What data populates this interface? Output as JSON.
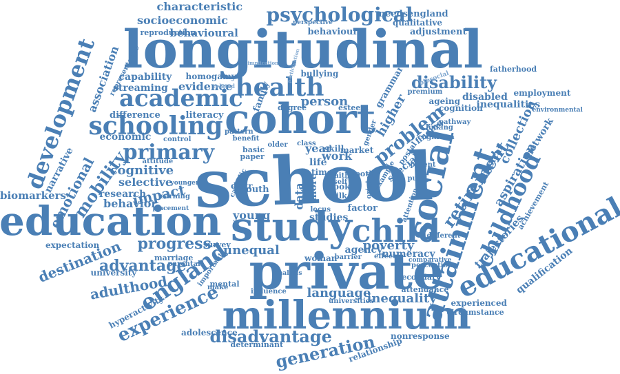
{
  "colors": {
    "primary": "#4a7fb5",
    "light": "#7ea6cf"
  },
  "words": [
    "school",
    "longitudinal",
    "cohort",
    "private",
    "millennium",
    "education",
    "study",
    "social",
    "attainment",
    "educational",
    "development",
    "child",
    "childhood",
    "schooling",
    "academic",
    "health",
    "psychological",
    "primary",
    "england",
    "experience",
    "generation",
    "disadvantage",
    "progress",
    "advantage",
    "adulthood",
    "disability",
    "problem",
    "retirement",
    "inequalities",
    "aspiration",
    "poverty",
    "language",
    "inequality",
    "characteristic",
    "socioeconomic",
    "behavioural",
    "behaviour",
    "needsengland",
    "qualitative",
    "adjustment",
    "fatherhood",
    "employment",
    "cognitive",
    "selective",
    "mobility",
    "emotional",
    "narrative",
    "association",
    "capability",
    "homogamy",
    "evidence",
    "streaming",
    "difference",
    "economic",
    "literacy",
    "impact",
    "behavior",
    "research",
    "biomarkers",
    "expectation",
    "destination",
    "university",
    "unequal",
    "young",
    "studies",
    "agency",
    "numeracy",
    "trajectories",
    "qualification",
    "experienced",
    "circumstance",
    "adolescence",
    "determinant",
    "relationship",
    "nonresponse",
    "collection",
    "network",
    "disabled",
    "cognition",
    "environmental",
    "physical",
    "higher",
    "person",
    "family",
    "year",
    "work",
    "life",
    "data",
    "more",
    "youth",
    "distr",
    "time",
    "basic",
    "paper",
    "attitude",
    "control",
    "bullying",
    "grammar",
    "special",
    "factor",
    "market",
    "skill",
    "class",
    "look",
    "milk",
    "faith",
    "self",
    "tooth",
    "postal",
    "degree",
    "esteem",
    "ageing",
    "premium",
    "linking",
    "pathway",
    "finding",
    "parent",
    "pupil",
    "effect",
    "woman",
    "barrier",
    "marriage",
    "parental",
    "mental",
    "make",
    "influence",
    "analysis",
    "universities",
    "secondary",
    "attendance",
    "perception",
    "comparative",
    "different",
    "important",
    "hyperactivity",
    "achievement",
    "reproduction",
    "perspective",
    "representative",
    "implication",
    "participation",
    "biosocial",
    "gender",
    "older",
    "earning",
    "placement",
    "younger",
    "pattern",
    "benefit",
    "locus",
    "catholic",
    "survey",
    "related",
    "origins",
    "example",
    "attention",
    "cognition"
  ]
}
